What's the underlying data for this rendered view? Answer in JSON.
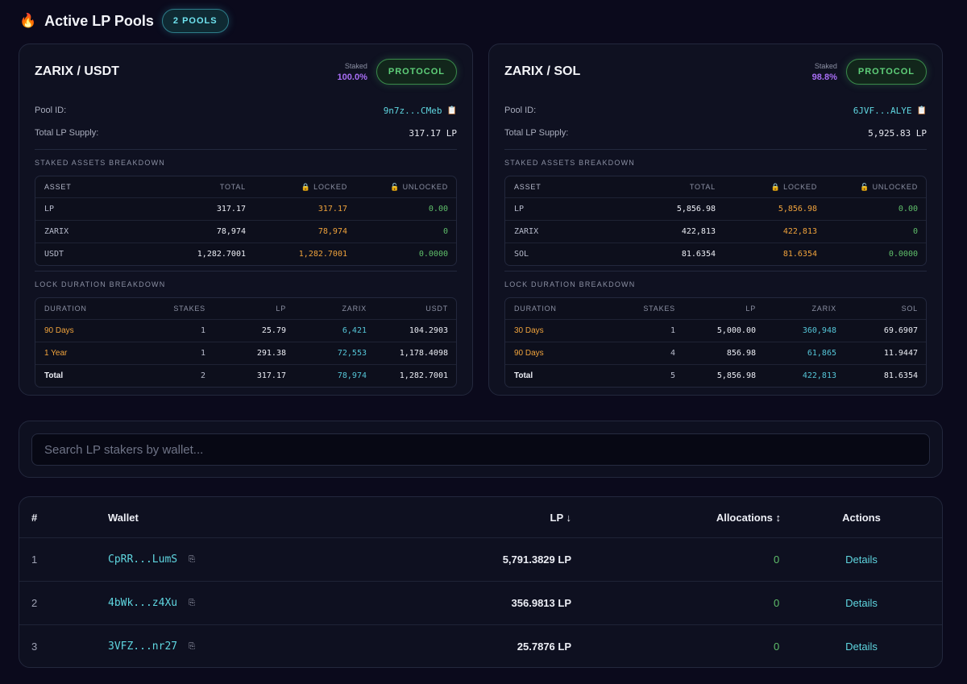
{
  "header": {
    "icon": "fire-icon",
    "title": "Active LP Pools",
    "badge": "2 POOLS"
  },
  "pools": [
    {
      "pair": "ZARIX / USDT",
      "staked_label": "Staked",
      "staked_value": "100.0%",
      "protocol_label": "PROTOCOL",
      "pool_id_label": "Pool ID:",
      "pool_id": "9n7z...CMeb",
      "supply_label": "Total LP Supply:",
      "supply": "317.17 LP",
      "assets_title": "STAKED ASSETS BREAKDOWN",
      "assets_headers": [
        "ASSET",
        "TOTAL",
        "🔒 LOCKED",
        "🔓 UNLOCKED"
      ],
      "assets": [
        [
          "LP",
          "317.17",
          "317.17",
          "0.00"
        ],
        [
          "ZARIX",
          "78,974",
          "78,974",
          "0"
        ],
        [
          "USDT",
          "1,282.7001",
          "1,282.7001",
          "0.0000"
        ]
      ],
      "duration_title": "LOCK DURATION BREAKDOWN",
      "duration_headers": [
        "DURATION",
        "STAKES",
        "LP",
        "ZARIX",
        "USDT"
      ],
      "durations": [
        [
          "90 Days",
          "1",
          "25.79",
          "6,421",
          "104.2903"
        ],
        [
          "1 Year",
          "1",
          "291.38",
          "72,553",
          "1,178.4098"
        ],
        [
          "Total",
          "2",
          "317.17",
          "78,974",
          "1,282.7001"
        ]
      ]
    },
    {
      "pair": "ZARIX / SOL",
      "staked_label": "Staked",
      "staked_value": "98.8%",
      "protocol_label": "PROTOCOL",
      "pool_id_label": "Pool ID:",
      "pool_id": "6JVF...ALYE",
      "supply_label": "Total LP Supply:",
      "supply": "5,925.83 LP",
      "assets_title": "STAKED ASSETS BREAKDOWN",
      "assets_headers": [
        "ASSET",
        "TOTAL",
        "🔒 LOCKED",
        "🔓 UNLOCKED"
      ],
      "assets": [
        [
          "LP",
          "5,856.98",
          "5,856.98",
          "0.00"
        ],
        [
          "ZARIX",
          "422,813",
          "422,813",
          "0"
        ],
        [
          "SOL",
          "81.6354",
          "81.6354",
          "0.0000"
        ]
      ],
      "duration_title": "LOCK DURATION BREAKDOWN",
      "duration_headers": [
        "DURATION",
        "STAKES",
        "LP",
        "ZARIX",
        "SOL"
      ],
      "durations": [
        [
          "30 Days",
          "1",
          "5,000.00",
          "360,948",
          "69.6907"
        ],
        [
          "90 Days",
          "4",
          "856.98",
          "61,865",
          "11.9447"
        ],
        [
          "Total",
          "5",
          "5,856.98",
          "422,813",
          "81.6354"
        ]
      ]
    }
  ],
  "search": {
    "placeholder": "Search LP stakers by wallet..."
  },
  "stakers": {
    "headers": {
      "num": "#",
      "wallet": "Wallet",
      "lp": "LP ↓",
      "alloc": "Allocations ↕",
      "actions": "Actions"
    },
    "rows": [
      {
        "num": "1",
        "wallet": "CpRR...LumS",
        "lp": "5,791.3829 LP",
        "alloc": "0",
        "action": "Details"
      },
      {
        "num": "2",
        "wallet": "4bWk...z4Xu",
        "lp": "356.9813 LP",
        "alloc": "0",
        "action": "Details"
      },
      {
        "num": "3",
        "wallet": "3VFZ...nr27",
        "lp": "25.7876 LP",
        "alloc": "0",
        "action": "Details"
      }
    ]
  },
  "colors": {
    "accent_cyan": "#5fd6e0",
    "locked": "#f0a33c",
    "unlocked": "#5fbf6a",
    "staked": "#a86ef5"
  }
}
